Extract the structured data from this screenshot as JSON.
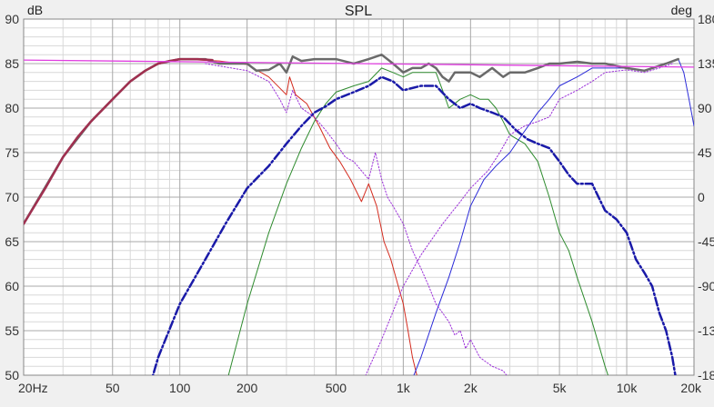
{
  "chart_data": {
    "type": "line",
    "title": "SPL",
    "ylabel": "dB",
    "y2label": "deg",
    "xscale": "log",
    "xlim": [
      20,
      20000
    ],
    "ylim": [
      50,
      90
    ],
    "y2lim": [
      -180,
      180
    ],
    "grid": true,
    "x_ticks": [
      {
        "value": 20,
        "label": "20Hz"
      },
      {
        "value": 50,
        "label": "50"
      },
      {
        "value": 100,
        "label": "100"
      },
      {
        "value": 200,
        "label": "200"
      },
      {
        "value": 500,
        "label": "500"
      },
      {
        "value": 1000,
        "label": "1k"
      },
      {
        "value": 2000,
        "label": "2k"
      },
      {
        "value": 5000,
        "label": "5k"
      },
      {
        "value": 10000,
        "label": "10k"
      },
      {
        "value": 20000,
        "label": "20k"
      }
    ],
    "y_ticks": [
      90,
      85,
      80,
      75,
      70,
      65,
      60,
      55,
      50
    ],
    "y2_ticks": [
      "180",
      "135",
      "90",
      "45",
      "0",
      "-45",
      "-90",
      "-135",
      "-180"
    ],
    "series": [
      {
        "color": "#d42b1e",
        "style": "solid",
        "width": 1,
        "points": [
          [
            100,
            85.5
          ],
          [
            150,
            85.3
          ],
          [
            200,
            84.9
          ],
          [
            250,
            83.5
          ],
          [
            300,
            81.5
          ],
          [
            310,
            83.5
          ],
          [
            330,
            81.5
          ],
          [
            370,
            80.5
          ],
          [
            420,
            78
          ],
          [
            470,
            75.5
          ],
          [
            520,
            74
          ],
          [
            580,
            72
          ],
          [
            650,
            69.5
          ],
          [
            700,
            71.5
          ],
          [
            760,
            69
          ],
          [
            820,
            65
          ],
          [
            880,
            63
          ],
          [
            950,
            60
          ],
          [
            1000,
            58
          ],
          [
            1050,
            55
          ],
          [
            1100,
            52
          ],
          [
            1150,
            50
          ]
        ]
      },
      {
        "color": "#2e8b2e",
        "style": "solid",
        "width": 1,
        "points": [
          [
            150,
            46
          ],
          [
            200,
            58
          ],
          [
            250,
            66
          ],
          [
            300,
            71.5
          ],
          [
            350,
            75.5
          ],
          [
            400,
            78.5
          ],
          [
            450,
            80.5
          ],
          [
            500,
            81.8
          ],
          [
            600,
            82.5
          ],
          [
            700,
            83
          ],
          [
            800,
            84.5
          ],
          [
            900,
            84
          ],
          [
            1000,
            83.5
          ],
          [
            1100,
            84
          ],
          [
            1200,
            84
          ],
          [
            1400,
            84
          ],
          [
            1500,
            82
          ],
          [
            1600,
            80
          ],
          [
            1800,
            81
          ],
          [
            2000,
            81.5
          ],
          [
            2200,
            81
          ],
          [
            2400,
            81
          ],
          [
            2600,
            80
          ],
          [
            2800,
            78.5
          ],
          [
            3000,
            77
          ],
          [
            3500,
            76
          ],
          [
            4000,
            74
          ],
          [
            4500,
            70
          ],
          [
            5000,
            66
          ],
          [
            5500,
            64
          ],
          [
            6000,
            61
          ],
          [
            7000,
            56
          ],
          [
            8000,
            51
          ],
          [
            8500,
            49
          ]
        ]
      },
      {
        "color": "#2a2ad8",
        "style": "solid",
        "width": 1,
        "points": [
          [
            1000,
            47
          ],
          [
            1200,
            52
          ],
          [
            1400,
            57
          ],
          [
            1600,
            61
          ],
          [
            1800,
            65
          ],
          [
            2000,
            69
          ],
          [
            2300,
            72
          ],
          [
            2600,
            73.5
          ],
          [
            3000,
            75
          ],
          [
            3400,
            77
          ],
          [
            4000,
            79.5
          ],
          [
            4500,
            81
          ],
          [
            5000,
            82.5
          ],
          [
            6000,
            83.5
          ],
          [
            7000,
            84.5
          ],
          [
            8000,
            84.5
          ],
          [
            10000,
            84.5
          ],
          [
            12000,
            84.2
          ],
          [
            15000,
            85
          ],
          [
            17000,
            85.5
          ],
          [
            18000,
            84
          ],
          [
            19000,
            81
          ],
          [
            20000,
            78
          ]
        ]
      },
      {
        "color": "#1a1aa8",
        "style": "dashdot",
        "width": 2.5,
        "points": [
          [
            70,
            47
          ],
          [
            80,
            52
          ],
          [
            100,
            58
          ],
          [
            130,
            63
          ],
          [
            160,
            67
          ],
          [
            200,
            71
          ],
          [
            250,
            73.5
          ],
          [
            300,
            76
          ],
          [
            350,
            78
          ],
          [
            400,
            79.5
          ],
          [
            450,
            80.2
          ],
          [
            500,
            81
          ],
          [
            600,
            81.8
          ],
          [
            700,
            82.5
          ],
          [
            800,
            83.5
          ],
          [
            900,
            83
          ],
          [
            1000,
            82
          ],
          [
            1200,
            82.5
          ],
          [
            1400,
            82.5
          ],
          [
            1600,
            81
          ],
          [
            1800,
            80
          ],
          [
            2000,
            80.5
          ],
          [
            2200,
            80
          ],
          [
            2500,
            79.5
          ],
          [
            2800,
            79
          ],
          [
            3200,
            77.5
          ],
          [
            3600,
            76.5
          ],
          [
            4000,
            76
          ],
          [
            4500,
            75.5
          ],
          [
            5000,
            74
          ],
          [
            5500,
            72.5
          ],
          [
            6000,
            71.5
          ],
          [
            7000,
            71.5
          ],
          [
            8000,
            68.5
          ],
          [
            9000,
            67.5
          ],
          [
            10000,
            66
          ],
          [
            11000,
            63
          ],
          [
            12000,
            61.5
          ],
          [
            13000,
            60
          ],
          [
            14000,
            57
          ],
          [
            15000,
            55
          ],
          [
            16000,
            52
          ],
          [
            17000,
            48
          ]
        ]
      },
      {
        "color": "#9b30d8",
        "style": "dotted",
        "width": 1,
        "points": [
          [
            130,
            85
          ],
          [
            200,
            84.2
          ],
          [
            250,
            83
          ],
          [
            280,
            81
          ],
          [
            300,
            79.5
          ],
          [
            320,
            82
          ],
          [
            350,
            80
          ],
          [
            400,
            79
          ],
          [
            450,
            77.5
          ],
          [
            500,
            76
          ],
          [
            550,
            74.5
          ],
          [
            600,
            74
          ],
          [
            700,
            72
          ],
          [
            750,
            75
          ],
          [
            800,
            72
          ],
          [
            850,
            70
          ],
          [
            900,
            69
          ],
          [
            1000,
            67
          ],
          [
            1100,
            64
          ],
          [
            1200,
            62
          ],
          [
            1300,
            60
          ],
          [
            1400,
            58
          ],
          [
            1500,
            57
          ],
          [
            1600,
            56
          ],
          [
            1700,
            54.5
          ],
          [
            1800,
            55
          ],
          [
            1900,
            53
          ],
          [
            2000,
            54
          ],
          [
            2200,
            52
          ],
          [
            2500,
            51
          ],
          [
            2800,
            50.5
          ],
          [
            3000,
            49.5
          ]
        ]
      },
      {
        "color": "#9b30d8",
        "style": "dotted",
        "width": 1,
        "points": [
          [
            600,
            47
          ],
          [
            800,
            54
          ],
          [
            1000,
            60
          ],
          [
            1200,
            63.5
          ],
          [
            1500,
            67
          ],
          [
            1800,
            69.5
          ],
          [
            2000,
            71
          ],
          [
            2400,
            73
          ],
          [
            2700,
            75
          ],
          [
            3000,
            77
          ],
          [
            3500,
            78
          ],
          [
            4000,
            78.5
          ],
          [
            4500,
            79
          ],
          [
            5000,
            81
          ],
          [
            6000,
            82
          ],
          [
            7000,
            83
          ],
          [
            8000,
            84
          ],
          [
            10000,
            84.3
          ],
          [
            12000,
            84
          ],
          [
            14000,
            84.5
          ],
          [
            16000,
            85
          ]
        ]
      },
      {
        "color": "#6a6a6a",
        "style": "solid",
        "width": 2.5,
        "points": [
          [
            20,
            67
          ],
          [
            30,
            74.5
          ],
          [
            40,
            78.5
          ],
          [
            50,
            81
          ],
          [
            60,
            83
          ],
          [
            70,
            84.2
          ],
          [
            80,
            85
          ],
          [
            100,
            85.5
          ],
          [
            130,
            85.5
          ],
          [
            150,
            85
          ],
          [
            200,
            85
          ],
          [
            220,
            84.2
          ],
          [
            250,
            84.3
          ],
          [
            280,
            85
          ],
          [
            300,
            84
          ],
          [
            320,
            85.8
          ],
          [
            350,
            85.3
          ],
          [
            400,
            85.5
          ],
          [
            500,
            85.5
          ],
          [
            600,
            85
          ],
          [
            700,
            85.5
          ],
          [
            800,
            86
          ],
          [
            900,
            85
          ],
          [
            1000,
            84
          ],
          [
            1100,
            84.5
          ],
          [
            1200,
            84.5
          ],
          [
            1300,
            85
          ],
          [
            1400,
            84.5
          ],
          [
            1500,
            83.5
          ],
          [
            1600,
            83
          ],
          [
            1700,
            84
          ],
          [
            1800,
            84
          ],
          [
            2000,
            84
          ],
          [
            2200,
            83.5
          ],
          [
            2500,
            84.5
          ],
          [
            2800,
            83.5
          ],
          [
            3000,
            84
          ],
          [
            3500,
            84
          ],
          [
            4000,
            84.5
          ],
          [
            4500,
            85
          ],
          [
            5000,
            85
          ],
          [
            6000,
            85.2
          ],
          [
            7000,
            85
          ],
          [
            8000,
            85
          ],
          [
            10000,
            84.5
          ],
          [
            12000,
            84.2
          ],
          [
            15000,
            85
          ],
          [
            17000,
            85.5
          ]
        ]
      },
      {
        "color": "#a03050",
        "style": "solid",
        "width": 2.5,
        "points": [
          [
            20,
            67
          ],
          [
            25,
            71
          ],
          [
            30,
            74.5
          ],
          [
            35,
            76.8
          ],
          [
            40,
            78.5
          ],
          [
            50,
            81
          ],
          [
            60,
            83
          ],
          [
            70,
            84.2
          ],
          [
            80,
            85
          ],
          [
            90,
            85.3
          ],
          [
            100,
            85.5
          ],
          [
            120,
            85.5
          ],
          [
            140,
            85.4
          ]
        ]
      },
      {
        "color": "#e040e0",
        "style": "solid",
        "width": 1.3,
        "points": [
          [
            20,
            85.4
          ],
          [
            20000,
            84.6
          ]
        ]
      }
    ]
  }
}
